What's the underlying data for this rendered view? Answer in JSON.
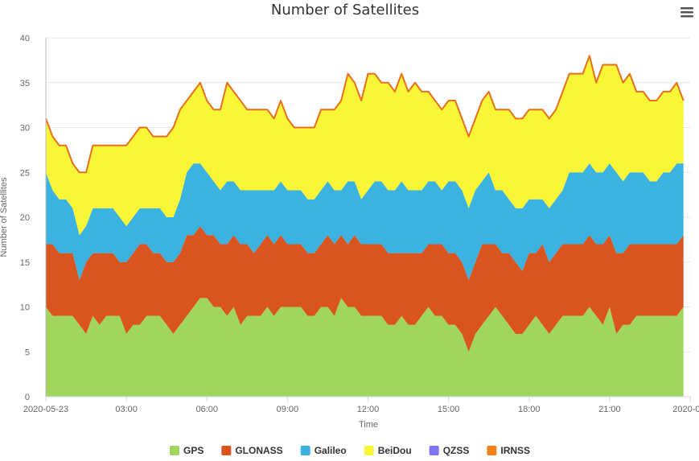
{
  "chart_data": {
    "type": "area",
    "stacked": true,
    "title": "Number of Satellites",
    "xlabel": "Time",
    "ylabel": "Number of Satellites",
    "ylim": [
      0,
      40
    ],
    "yticks": [
      0,
      5,
      10,
      15,
      20,
      25,
      30,
      35,
      40
    ],
    "xlim": [
      0,
      24
    ],
    "x_tick_positions": [
      0,
      3,
      6,
      9,
      12,
      15,
      18,
      21,
      24
    ],
    "x_tick_labels": [
      "2020-05-23",
      "03:00",
      "06:00",
      "09:00",
      "12:00",
      "15:00",
      "18:00",
      "21:00",
      "2020-0..."
    ],
    "x_hours": [
      0,
      0.25,
      0.5,
      0.75,
      1,
      1.25,
      1.5,
      1.75,
      2,
      2.25,
      2.5,
      2.75,
      3,
      3.25,
      3.5,
      3.75,
      4,
      4.25,
      4.5,
      4.75,
      5,
      5.25,
      5.5,
      5.75,
      6,
      6.25,
      6.5,
      6.75,
      7,
      7.25,
      7.5,
      7.75,
      8,
      8.25,
      8.5,
      8.75,
      9,
      9.25,
      9.5,
      9.75,
      10,
      10.25,
      10.5,
      10.75,
      11,
      11.25,
      11.5,
      11.75,
      12,
      12.25,
      12.5,
      12.75,
      13,
      13.25,
      13.5,
      13.75,
      14,
      14.25,
      14.5,
      14.75,
      15,
      15.25,
      15.5,
      15.75,
      16,
      16.25,
      16.5,
      16.75,
      17,
      17.25,
      17.5,
      17.75,
      18,
      18.25,
      18.5,
      18.75,
      19,
      19.25,
      19.5,
      19.75,
      20,
      20.25,
      20.5,
      20.75,
      21,
      21.25,
      21.5,
      21.75,
      22,
      22.25,
      22.5,
      22.75,
      23,
      23.25,
      23.5,
      23.75
    ],
    "series": [
      {
        "name": "GPS",
        "color": "#a1d65c",
        "values": [
          10,
          9,
          9,
          9,
          9,
          8,
          7,
          9,
          8,
          9,
          9,
          9,
          7,
          8,
          8,
          9,
          9,
          9,
          8,
          7,
          8,
          9,
          10,
          11,
          11,
          10,
          10,
          9,
          10,
          8,
          9,
          9,
          9,
          10,
          9,
          10,
          10,
          10,
          10,
          9,
          9,
          10,
          10,
          9,
          11,
          10,
          10,
          9,
          9,
          9,
          9,
          8,
          8,
          9,
          8,
          8,
          9,
          10,
          9,
          9,
          8,
          8,
          7,
          5,
          7,
          8,
          9,
          10,
          9,
          8,
          7,
          7,
          8,
          9,
          8,
          7,
          8,
          9,
          9,
          9,
          9,
          10,
          9,
          8,
          10,
          7,
          8,
          8,
          9,
          9,
          9,
          9,
          9,
          9,
          9,
          10
        ]
      },
      {
        "name": "GLONASS",
        "color": "#d9541e",
        "values": [
          7,
          8,
          7,
          7,
          7,
          5,
          8,
          7,
          8,
          7,
          7,
          6,
          8,
          8,
          9,
          8,
          7,
          7,
          7,
          8,
          8,
          9,
          8,
          8,
          7,
          8,
          7,
          8,
          8,
          9,
          8,
          7,
          8,
          8,
          8,
          8,
          7,
          7,
          7,
          7,
          7,
          7,
          8,
          8,
          7,
          7,
          8,
          8,
          8,
          8,
          8,
          8,
          8,
          7,
          8,
          8,
          7,
          7,
          8,
          8,
          8,
          8,
          8,
          8,
          8,
          9,
          8,
          7,
          7,
          8,
          8,
          7,
          8,
          7,
          9,
          8,
          8,
          8,
          8,
          8,
          8,
          8,
          8,
          9,
          8,
          9,
          8,
          9,
          8,
          8,
          8,
          8,
          8,
          8,
          8,
          8
        ]
      },
      {
        "name": "Galileo",
        "color": "#3bb2e0",
        "values": [
          8,
          6,
          6,
          6,
          5,
          5,
          4,
          5,
          5,
          5,
          5,
          5,
          4,
          4,
          4,
          4,
          5,
          5,
          5,
          5,
          6,
          7,
          8,
          7,
          7,
          6,
          6,
          7,
          6,
          6,
          6,
          7,
          6,
          5,
          6,
          6,
          6,
          6,
          6,
          6,
          6,
          6,
          6,
          6,
          5,
          7,
          6,
          5,
          6,
          7,
          7,
          7,
          7,
          8,
          7,
          7,
          7,
          7,
          7,
          6,
          8,
          8,
          8,
          8,
          8,
          7,
          8,
          6,
          7,
          6,
          6,
          7,
          6,
          6,
          5,
          6,
          6,
          6,
          8,
          8,
          8,
          8,
          8,
          8,
          8,
          9,
          8,
          8,
          8,
          8,
          7,
          7,
          8,
          8,
          9,
          8
        ]
      },
      {
        "name": "BeiDou",
        "color": "#f9f537",
        "values": [
          6,
          6,
          6,
          6,
          5,
          7,
          6,
          7,
          7,
          7,
          7,
          8,
          9,
          9,
          9,
          9,
          8,
          8,
          9,
          10,
          10,
          8,
          8,
          9,
          8,
          8,
          9,
          11,
          10,
          10,
          9,
          9,
          9,
          9,
          8,
          9,
          8,
          7,
          7,
          8,
          8,
          9,
          8,
          9,
          10,
          12,
          11,
          11,
          13,
          12,
          11,
          12,
          11,
          12,
          11,
          12,
          11,
          10,
          9,
          9,
          9,
          9,
          8,
          8,
          8,
          9,
          9,
          9,
          9,
          10,
          10,
          10,
          10,
          10,
          10,
          10,
          10,
          11,
          11,
          11,
          11,
          12,
          10,
          12,
          11,
          12,
          11,
          11,
          9,
          9,
          9,
          9,
          9,
          9,
          9,
          7
        ]
      },
      {
        "name": "QZSS",
        "color": "#8077f0",
        "values": [
          0,
          0,
          0,
          0,
          0,
          0,
          0,
          0,
          0,
          0,
          0,
          0,
          0,
          0,
          0,
          0,
          0,
          0,
          0,
          0,
          0,
          0,
          0,
          0,
          0,
          0,
          0,
          0,
          0,
          0,
          0,
          0,
          0,
          0,
          0,
          0,
          0,
          0,
          0,
          0,
          0,
          0,
          0,
          0,
          0,
          0,
          0,
          0,
          0,
          0,
          0,
          0,
          0,
          0,
          0,
          0,
          0,
          0,
          0,
          0,
          0,
          0,
          0,
          0,
          0,
          0,
          0,
          0,
          0,
          0,
          0,
          0,
          0,
          0,
          0,
          0,
          0,
          0,
          0,
          0,
          0,
          0,
          0,
          0,
          0,
          0,
          0,
          0,
          0,
          0,
          0,
          0,
          0,
          0,
          0,
          0
        ]
      },
      {
        "name": "IRNSS",
        "color": "#f0821e",
        "values": [
          0,
          0,
          0,
          0,
          0,
          0,
          0,
          0,
          0,
          0,
          0,
          0,
          0,
          0,
          0,
          0,
          0,
          0,
          0,
          0,
          0,
          0,
          0,
          0,
          0,
          0,
          0,
          0,
          0,
          0,
          0,
          0,
          0,
          0,
          0,
          0,
          0,
          0,
          0,
          0,
          0,
          0,
          0,
          0,
          0,
          0,
          0,
          0,
          0,
          0,
          0,
          0,
          0,
          0,
          0,
          0,
          0,
          0,
          0,
          0,
          0,
          0,
          0,
          0,
          0,
          0,
          0,
          0,
          0,
          0,
          0,
          0,
          0,
          0,
          0,
          0,
          0,
          0,
          0,
          0,
          0,
          0,
          0,
          0,
          0,
          0,
          0,
          0,
          0,
          0,
          0,
          0,
          0,
          0,
          0,
          0
        ]
      }
    ],
    "total_line_color": "#e8701c",
    "grid": true,
    "legend_position": "bottom"
  },
  "menu": {
    "icon": "hamburger-icon"
  }
}
